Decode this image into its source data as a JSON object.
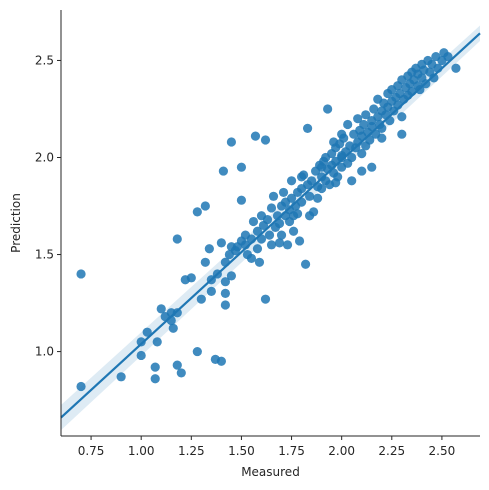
{
  "chart_data": {
    "type": "scatter",
    "title": "",
    "xlabel": "Measured",
    "ylabel": "Prediction",
    "xlim": [
      0.6,
      2.69
    ],
    "ylim": [
      0.565,
      2.76
    ],
    "xticks": [
      0.75,
      1.0,
      1.25,
      1.5,
      1.75,
      2.0,
      2.25,
      2.5
    ],
    "xtick_labels": [
      "0.75",
      "1.00",
      "1.25",
      "1.50",
      "1.75",
      "2.00",
      "2.25",
      "2.50"
    ],
    "yticks": [
      1.0,
      1.5,
      2.0,
      2.5
    ],
    "ytick_labels": [
      "1.0",
      "1.5",
      "2.0",
      "2.5"
    ],
    "grid": false,
    "legend": "none",
    "point_color": "#1f77b4",
    "regression": {
      "x": [
        0.6,
        2.69
      ],
      "y": [
        0.66,
        2.64
      ],
      "ci_band_start": [
        0.595,
        0.725
      ],
      "ci_band_end": [
        2.6,
        2.68
      ],
      "color": "#1f77b4"
    },
    "points": [
      [
        0.7,
        1.4
      ],
      [
        0.7,
        0.82
      ],
      [
        0.9,
        0.87
      ],
      [
        1.0,
        0.98
      ],
      [
        1.0,
        1.05
      ],
      [
        1.03,
        1.1
      ],
      [
        1.08,
        1.05
      ],
      [
        1.07,
        0.92
      ],
      [
        1.07,
        0.86
      ],
      [
        1.1,
        1.22
      ],
      [
        1.12,
        1.18
      ],
      [
        1.15,
        1.2
      ],
      [
        1.15,
        1.16
      ],
      [
        1.16,
        1.12
      ],
      [
        1.18,
        0.93
      ],
      [
        1.18,
        1.58
      ],
      [
        1.2,
        0.89
      ],
      [
        1.18,
        1.2
      ],
      [
        1.22,
        1.37
      ],
      [
        1.25,
        1.38
      ],
      [
        1.28,
        1.0
      ],
      [
        1.28,
        1.72
      ],
      [
        1.3,
        1.27
      ],
      [
        1.32,
        1.75
      ],
      [
        1.32,
        1.46
      ],
      [
        1.34,
        1.53
      ],
      [
        1.35,
        1.37
      ],
      [
        1.35,
        1.31
      ],
      [
        1.37,
        0.96
      ],
      [
        1.38,
        1.4
      ],
      [
        1.4,
        0.95
      ],
      [
        1.4,
        1.56
      ],
      [
        1.41,
        1.93
      ],
      [
        1.42,
        1.36
      ],
      [
        1.42,
        1.24
      ],
      [
        1.42,
        1.3
      ],
      [
        1.42,
        1.46
      ],
      [
        1.44,
        1.5
      ],
      [
        1.45,
        2.08
      ],
      [
        1.45,
        1.54
      ],
      [
        1.45,
        1.39
      ],
      [
        1.47,
        1.52
      ],
      [
        1.48,
        1.54
      ],
      [
        1.5,
        1.57
      ],
      [
        1.5,
        1.95
      ],
      [
        1.5,
        1.78
      ],
      [
        1.52,
        1.6
      ],
      [
        1.52,
        1.55
      ],
      [
        1.53,
        1.5
      ],
      [
        1.55,
        1.58
      ],
      [
        1.55,
        1.48
      ],
      [
        1.56,
        1.67
      ],
      [
        1.57,
        2.11
      ],
      [
        1.58,
        1.62
      ],
      [
        1.58,
        1.53
      ],
      [
        1.59,
        1.46
      ],
      [
        1.6,
        1.7
      ],
      [
        1.6,
        1.58
      ],
      [
        1.61,
        1.65
      ],
      [
        1.62,
        2.09
      ],
      [
        1.62,
        1.27
      ],
      [
        1.63,
        1.68
      ],
      [
        1.64,
        1.6
      ],
      [
        1.65,
        1.74
      ],
      [
        1.65,
        1.55
      ],
      [
        1.66,
        1.8
      ],
      [
        1.67,
        1.64
      ],
      [
        1.68,
        1.7
      ],
      [
        1.69,
        1.66
      ],
      [
        1.7,
        1.75
      ],
      [
        1.7,
        1.6
      ],
      [
        1.71,
        1.82
      ],
      [
        1.72,
        1.77
      ],
      [
        1.72,
        1.7
      ],
      [
        1.73,
        1.55
      ],
      [
        1.74,
        1.73
      ],
      [
        1.75,
        1.79
      ],
      [
        1.75,
        1.88
      ],
      [
        1.76,
        1.62
      ],
      [
        1.77,
        1.75
      ],
      [
        1.78,
        1.82
      ],
      [
        1.78,
        1.71
      ],
      [
        1.79,
        1.57
      ],
      [
        1.8,
        1.84
      ],
      [
        1.8,
        1.77
      ],
      [
        1.81,
        1.91
      ],
      [
        1.82,
        1.45
      ],
      [
        1.83,
        2.15
      ],
      [
        1.83,
        1.86
      ],
      [
        1.84,
        1.8
      ],
      [
        1.85,
        1.88
      ],
      [
        1.86,
        1.72
      ],
      [
        1.87,
        1.93
      ],
      [
        1.88,
        1.85
      ],
      [
        1.88,
        1.79
      ],
      [
        1.89,
        1.96
      ],
      [
        1.9,
        1.9
      ],
      [
        1.9,
        1.84
      ],
      [
        1.91,
        1.98
      ],
      [
        1.92,
        2.0
      ],
      [
        1.92,
        1.88
      ],
      [
        1.93,
        2.25
      ],
      [
        1.93,
        1.94
      ],
      [
        1.94,
        1.86
      ],
      [
        1.95,
        2.02
      ],
      [
        1.95,
        1.96
      ],
      [
        1.96,
        1.92
      ],
      [
        1.97,
        2.05
      ],
      [
        1.97,
        1.98
      ],
      [
        1.98,
        1.9
      ],
      [
        1.99,
        2.07
      ],
      [
        2.0,
        2.01
      ],
      [
        2.0,
        1.95
      ],
      [
        2.01,
        2.1
      ],
      [
        2.02,
        2.03
      ],
      [
        2.03,
        2.17
      ],
      [
        2.03,
        1.97
      ],
      [
        2.04,
        2.06
      ],
      [
        2.05,
        2.0
      ],
      [
        2.06,
        2.12
      ],
      [
        2.07,
        2.05
      ],
      [
        2.08,
        2.2
      ],
      [
        2.08,
        2.08
      ],
      [
        2.09,
        2.14
      ],
      [
        2.1,
        2.02
      ],
      [
        2.1,
        2.11
      ],
      [
        2.11,
        2.17
      ],
      [
        2.12,
        2.06
      ],
      [
        2.12,
        2.22
      ],
      [
        2.13,
        2.13
      ],
      [
        2.14,
        2.09
      ],
      [
        2.15,
        2.19
      ],
      [
        2.15,
        2.16
      ],
      [
        2.16,
        2.25
      ],
      [
        2.17,
        2.12
      ],
      [
        2.18,
        2.21
      ],
      [
        2.18,
        2.3
      ],
      [
        2.19,
        2.17
      ],
      [
        2.2,
        2.24
      ],
      [
        2.2,
        2.1
      ],
      [
        2.21,
        2.28
      ],
      [
        2.22,
        2.22
      ],
      [
        2.23,
        2.33
      ],
      [
        2.23,
        2.26
      ],
      [
        2.24,
        2.19
      ],
      [
        2.25,
        2.29
      ],
      [
        2.25,
        2.35
      ],
      [
        2.26,
        2.24
      ],
      [
        2.27,
        2.31
      ],
      [
        2.28,
        2.37
      ],
      [
        2.28,
        2.27
      ],
      [
        2.29,
        2.33
      ],
      [
        2.3,
        2.4
      ],
      [
        2.3,
        2.21
      ],
      [
        2.31,
        2.3
      ],
      [
        2.32,
        2.36
      ],
      [
        2.33,
        2.42
      ],
      [
        2.33,
        2.32
      ],
      [
        2.34,
        2.38
      ],
      [
        2.35,
        2.44
      ],
      [
        2.35,
        2.34
      ],
      [
        2.36,
        2.4
      ],
      [
        2.37,
        2.46
      ],
      [
        2.38,
        2.37
      ],
      [
        2.38,
        2.43
      ],
      [
        2.39,
        2.35
      ],
      [
        2.4,
        2.48
      ],
      [
        2.4,
        2.41
      ],
      [
        2.41,
        2.45
      ],
      [
        2.42,
        2.38
      ],
      [
        2.43,
        2.5
      ],
      [
        2.44,
        2.44
      ],
      [
        2.45,
        2.48
      ],
      [
        2.46,
        2.41
      ],
      [
        2.47,
        2.52
      ],
      [
        2.48,
        2.46
      ],
      [
        2.5,
        2.5
      ],
      [
        2.51,
        2.54
      ],
      [
        2.53,
        2.52
      ],
      [
        2.57,
        2.46
      ],
      [
        2.1,
        1.93
      ],
      [
        2.0,
        2.0
      ],
      [
        1.97,
        1.87
      ],
      [
        2.05,
        1.88
      ],
      [
        2.3,
        2.12
      ],
      [
        2.15,
        1.95
      ],
      [
        1.74,
        1.67
      ],
      [
        1.84,
        1.7
      ],
      [
        1.76,
        1.7
      ],
      [
        1.69,
        1.56
      ],
      [
        1.96,
        2.08
      ],
      [
        2.2,
        2.15
      ],
      [
        1.9,
        1.95
      ],
      [
        2.0,
        2.12
      ],
      [
        1.8,
        1.9
      ]
    ]
  }
}
